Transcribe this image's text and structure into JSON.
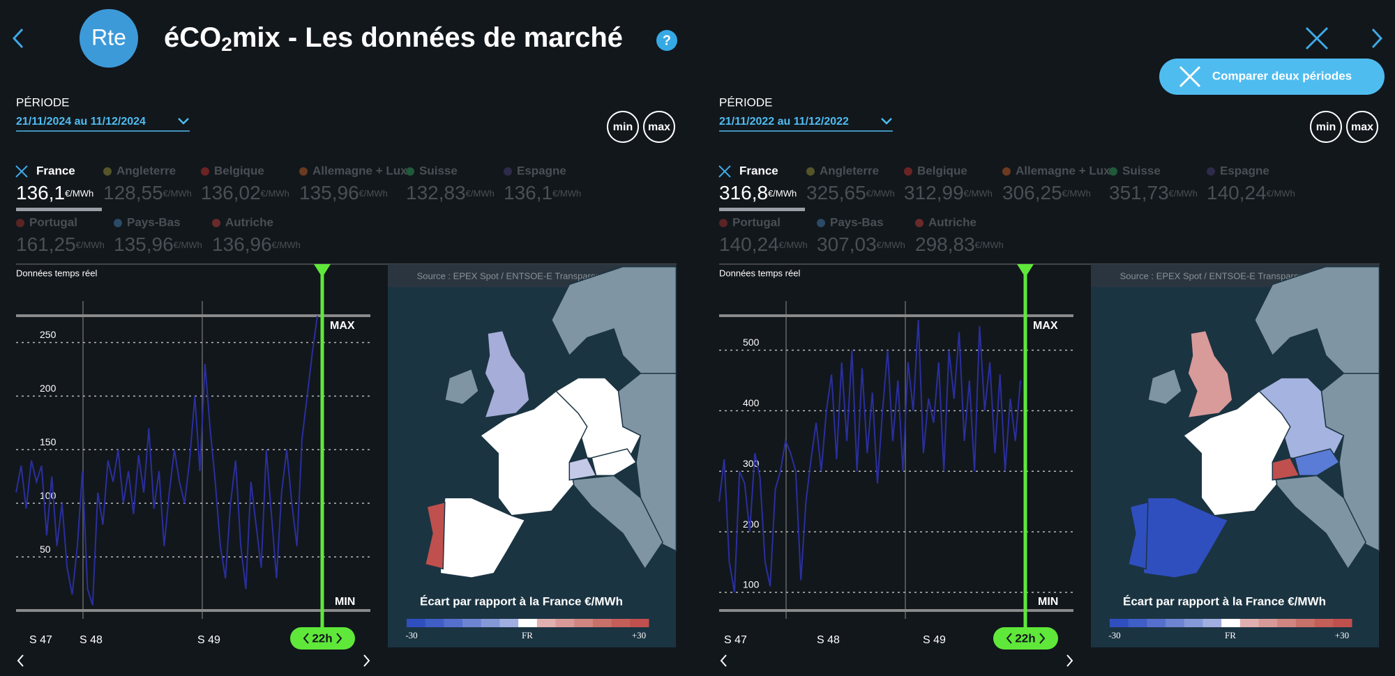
{
  "header": {
    "logo": "Rte",
    "title_main": "éCO",
    "title_sub": "2",
    "title_rest": "mix - Les données de marché",
    "help": "?"
  },
  "compare_button": "Comparer deux périodes",
  "panels": [
    {
      "period_label": "PÉRIODE",
      "period": "21/11/2024 au 11/12/2024",
      "min": "min",
      "max": "max",
      "unit": "€/MWh",
      "countries": [
        {
          "name": "France",
          "value": "136,1"
        },
        {
          "name": "Angleterre",
          "value": "128,55"
        },
        {
          "name": "Belgique",
          "value": "136,02"
        },
        {
          "name": "Allemagne + Lux",
          "value": "135,96"
        },
        {
          "name": "Suisse",
          "value": "132,83"
        },
        {
          "name": "Espagne",
          "value": "136,1"
        },
        {
          "name": "Portugal",
          "value": "161,25"
        },
        {
          "name": "Pays-Bas",
          "value": "135,96"
        },
        {
          "name": "Autriche",
          "value": "136,96"
        }
      ],
      "realtime_label": "Données temps réel",
      "chart": {
        "type": "line",
        "color": "#2a2f9e",
        "ylim": [
          0,
          275
        ],
        "yticks": [
          50,
          100,
          150,
          200,
          250
        ],
        "values": [
          110,
          135,
          95,
          140,
          120,
          135,
          70,
          125,
          60,
          100,
          40,
          15,
          60,
          130,
          20,
          5,
          110,
          80,
          140,
          120,
          150,
          100,
          130,
          90,
          145,
          110,
          170,
          95,
          130,
          60,
          110,
          150,
          120,
          100,
          140,
          200,
          130,
          230,
          170,
          120,
          60,
          30,
          100,
          140,
          60,
          20,
          120,
          80,
          40,
          150,
          90,
          30,
          110,
          150,
          100,
          60,
          160,
          200,
          240,
          275
        ],
        "week_labels": [
          "S 47",
          "S 48",
          "S 49"
        ],
        "max_label": "MAX",
        "min_label": "MIN",
        "cursor": "22h"
      },
      "map": {
        "source": "Source : EPEX Spot / ENTSOE-E Transparency Platform",
        "legend_title": "Écart par rapport à la France €/MWh",
        "scale_labels": [
          "-30",
          "FR",
          "+30"
        ]
      }
    },
    {
      "period_label": "PÉRIODE",
      "period": "21/11/2022 au 11/12/2022",
      "min": "min",
      "max": "max",
      "unit": "€/MWh",
      "countries": [
        {
          "name": "France",
          "value": "316,8"
        },
        {
          "name": "Angleterre",
          "value": "325,65"
        },
        {
          "name": "Belgique",
          "value": "312,99"
        },
        {
          "name": "Allemagne + Lux",
          "value": "306,25"
        },
        {
          "name": "Suisse",
          "value": "351,73"
        },
        {
          "name": "Espagne",
          "value": "140,24"
        },
        {
          "name": "Portugal",
          "value": "140,24"
        },
        {
          "name": "Pays-Bas",
          "value": "307,03"
        },
        {
          "name": "Autriche",
          "value": "298,83"
        }
      ],
      "realtime_label": "Données temps réel",
      "chart": {
        "type": "line",
        "color": "#2a2f9e",
        "ylim": [
          70,
          557
        ],
        "yticks": [
          100,
          200,
          300,
          400,
          500
        ],
        "values": [
          250,
          320,
          150,
          100,
          300,
          280,
          200,
          330,
          290,
          150,
          110,
          270,
          300,
          350,
          330,
          300,
          120,
          250,
          320,
          380,
          300,
          400,
          460,
          320,
          480,
          350,
          500,
          300,
          470,
          330,
          430,
          280,
          400,
          500,
          350,
          450,
          300,
          480,
          400,
          550,
          330,
          420,
          380,
          480,
          300,
          500,
          420,
          530,
          350,
          450,
          300,
          540,
          400,
          480,
          330,
          460,
          300,
          420,
          350,
          450
        ],
        "week_labels": [
          "S 47",
          "S 48",
          "S 49"
        ],
        "max_label": "MAX",
        "min_label": "MIN",
        "cursor": "22h"
      },
      "map": {
        "source": "Source : EPEX Spot / ENTSOE-E Transparency Platform",
        "legend_title": "Écart par rapport à la France €/MWh",
        "scale_labels": [
          "-30",
          "FR",
          "+30"
        ]
      }
    }
  ]
}
